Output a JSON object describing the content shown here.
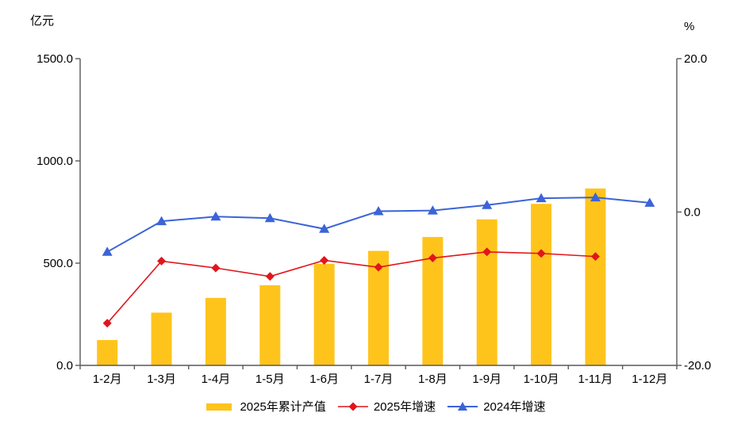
{
  "chart_data": {
    "type": "bar+line combo",
    "title": "",
    "categories": [
      "1-2月",
      "1-3月",
      "1-4月",
      "1-5月",
      "1-6月",
      "1-7月",
      "1-8月",
      "1-9月",
      "1-10月",
      "1-11月",
      "1-12月"
    ],
    "series": [
      {
        "name": "2025年累计产值",
        "type": "bar",
        "axis": "left",
        "color": "#FFC41C",
        "values": [
          124,
          258,
          330,
          392,
          497,
          560,
          628,
          714,
          790,
          865,
          null
        ]
      },
      {
        "name": "2025年增速",
        "type": "line",
        "marker": "diamond",
        "axis": "right",
        "color": "#E0161C",
        "values": [
          -14.5,
          -6.4,
          -7.3,
          -8.4,
          -6.3,
          -7.2,
          -6.0,
          -5.2,
          -5.4,
          -5.8,
          null
        ]
      },
      {
        "name": "2024年增速",
        "type": "line",
        "marker": "triangle",
        "axis": "right",
        "color": "#3B64D7",
        "values": [
          -5.2,
          -1.2,
          -0.6,
          -0.8,
          -2.2,
          0.1,
          0.2,
          0.9,
          1.8,
          1.9,
          1.2
        ]
      }
    ],
    "left_axis": {
      "unit": "亿元",
      "min": 0,
      "max": 1500,
      "tick_values": [
        0,
        500,
        1000,
        1500
      ],
      "tick_labels": [
        "0.0",
        "500.0",
        "1000.0",
        "1500.0"
      ]
    },
    "right_axis": {
      "unit": "%",
      "min": -20,
      "max": 20,
      "tick_values": [
        -20,
        0,
        20
      ],
      "tick_labels": [
        "-20.0",
        "0.0",
        "20.0"
      ]
    },
    "grid": false,
    "legend_position": "bottom",
    "axis_color": "#595959"
  }
}
